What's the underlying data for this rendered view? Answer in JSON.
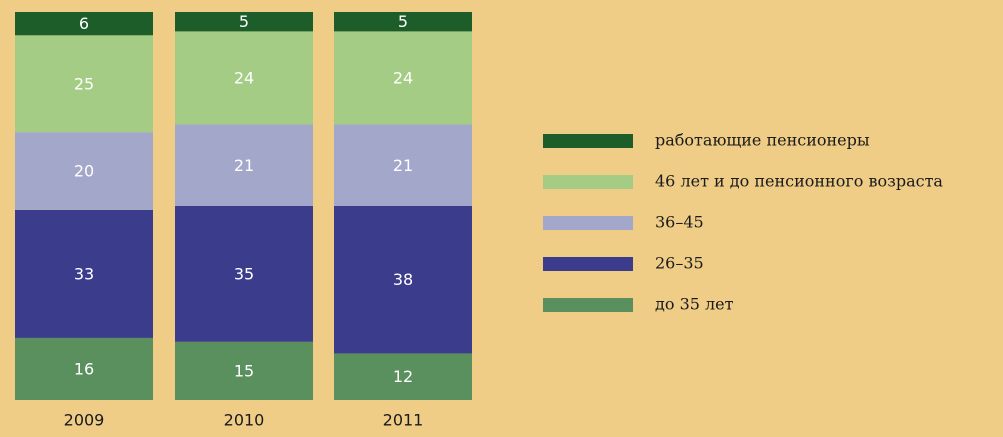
{
  "chart_data": {
    "type": "stacked_bar",
    "categories": [
      "2009",
      "2010",
      "2011"
    ],
    "series": [
      {
        "name": "работающие пенсионеры",
        "color": "#1c5d2a",
        "values": [
          6,
          5,
          5
        ]
      },
      {
        "name": "46 лет и до пенсионного возраста",
        "color": "#a5cc85",
        "values": [
          25,
          24,
          24
        ]
      },
      {
        "name": "36–45",
        "color": "#a3a7c9",
        "values": [
          20,
          21,
          21
        ]
      },
      {
        "name": "26–35",
        "color": "#3b3d8c",
        "values": [
          33,
          35,
          38
        ]
      },
      {
        "name": "до 35 лет",
        "color": "#5a8f5e",
        "values": [
          16,
          15,
          12
        ]
      }
    ],
    "legend": "right"
  }
}
